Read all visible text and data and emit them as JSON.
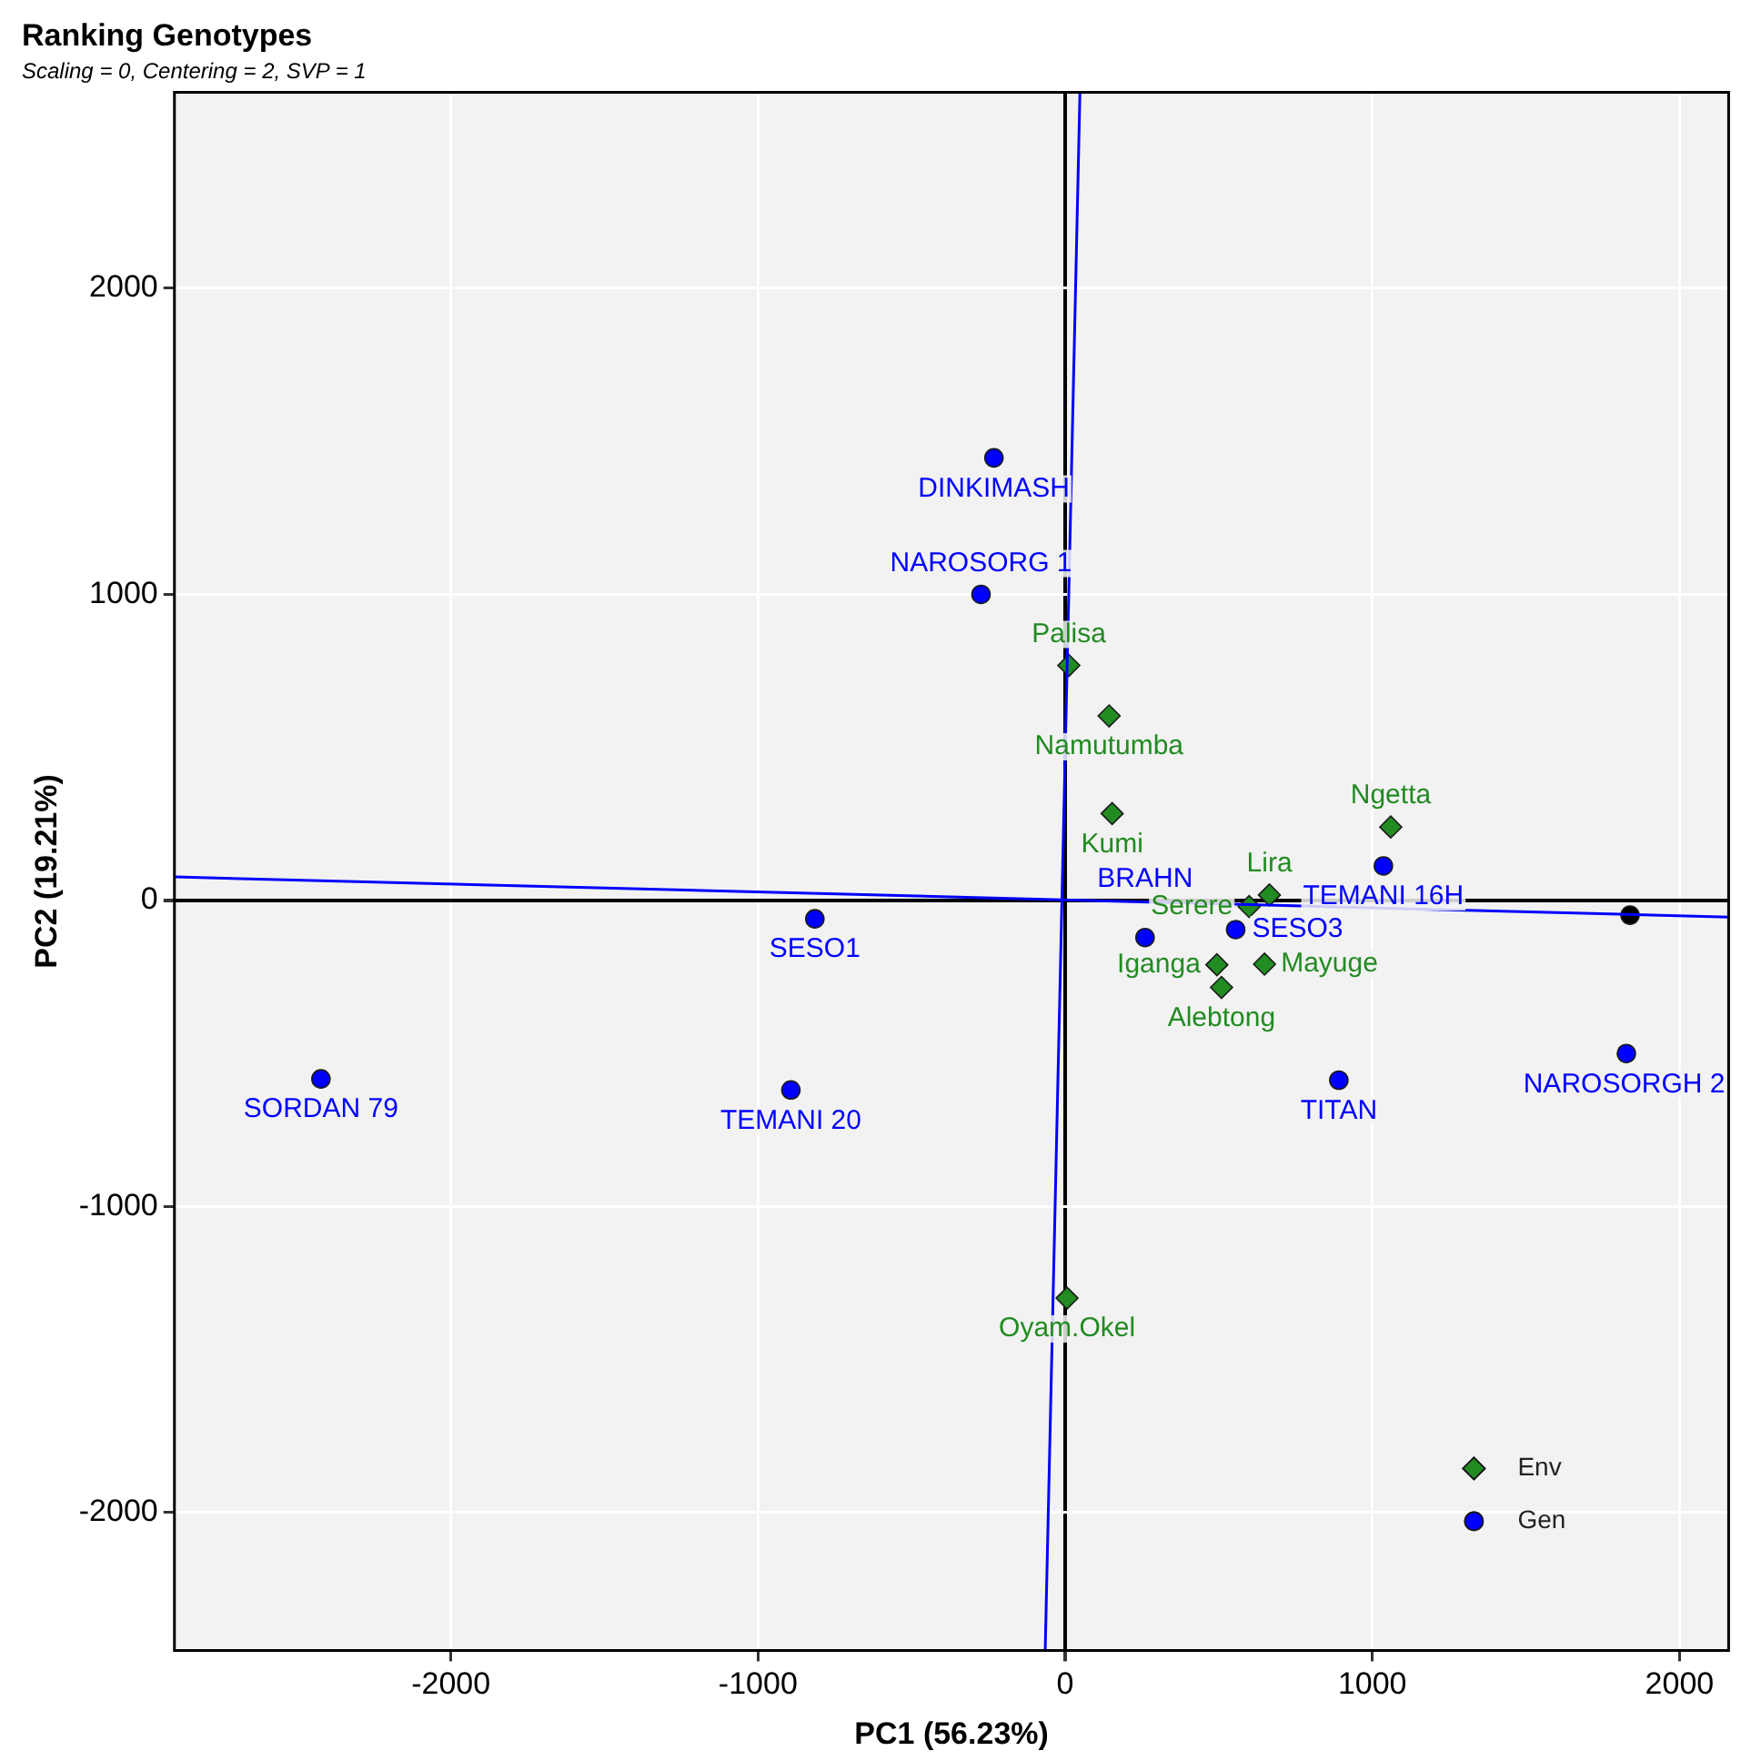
{
  "chart_data": {
    "type": "scatter",
    "title": "Ranking Genotypes",
    "subtitle": "Scaling = 0, Centering = 2, SVP = 1",
    "xlabel": "PC1 (56.23%)",
    "ylabel": "PC2 (19.21%)",
    "xlim": [
      -2900,
      2160
    ],
    "ylim": [
      -2450,
      2640
    ],
    "xticks": [
      -2000,
      -1000,
      0,
      1000,
      2000
    ],
    "yticks": [
      -2000,
      -1000,
      0,
      1000,
      2000
    ],
    "grid": true,
    "legend": "bottom right",
    "series": [
      {
        "type": "line",
        "color": "#0000ff",
        "x": [
          -2899,
          2160
        ],
        "values": [
          77,
          -54
        ],
        "marker": "none"
      },
      {
        "type": "line",
        "color": "#0000ff",
        "x": [
          48,
          -65
        ],
        "values": [
          2637,
          -2450
        ],
        "marker": "none"
      },
      {
        "name": "Env",
        "color": "#228b22",
        "marker": "diamond",
        "x": [
          12,
          143,
          153,
          1060,
          665,
          599,
          494,
          649,
          509,
          6
        ],
        "values": [
          768,
          603,
          284,
          240,
          18,
          -20,
          -210,
          -208,
          -284,
          -1299
        ]
      },
      {
        "name": "Gen",
        "color": "#0000ff",
        "marker": "circle",
        "x": [
          -232,
          -274,
          -815,
          -2423,
          -893,
          260,
          555,
          1036,
          891,
          1827
        ],
        "values": [
          1446,
          1000,
          -60,
          -583,
          -619,
          -121,
          -95,
          113,
          -587,
          -500
        ]
      },
      {
        "color": "#000000",
        "marker": "circle",
        "x": [
          1839
        ],
        "values": [
          -48
        ]
      }
    ],
    "annotations": [
      {
        "text": "Palisa",
        "x": 12,
        "y": 768
      },
      {
        "text": "Namutumba",
        "x": 143,
        "y": 603
      },
      {
        "text": "Kumi",
        "x": 153,
        "y": 284
      },
      {
        "text": "Ngetta",
        "x": 1060,
        "y": 240
      },
      {
        "text": "Lira",
        "x": 665,
        "y": 18
      },
      {
        "text": "Serere",
        "x": 599,
        "y": -20
      },
      {
        "text": "Iganga",
        "x": 494,
        "y": -210
      },
      {
        "text": "Mayuge",
        "x": 649,
        "y": -208
      },
      {
        "text": "Alebtong",
        "x": 509,
        "y": -284
      },
      {
        "text": "Oyam.Okel",
        "x": 6,
        "y": -1299
      },
      {
        "text": "DINKIMASH",
        "x": -232,
        "y": 1446
      },
      {
        "text": "NAROSORG 1",
        "x": -274,
        "y": 1000
      },
      {
        "text": "SESO1",
        "x": -815,
        "y": -60
      },
      {
        "text": "SORDAN 79",
        "x": -2423,
        "y": -583
      },
      {
        "text": "TEMANI 20",
        "x": -893,
        "y": -619
      },
      {
        "text": "BRAHN",
        "x": 260,
        "y": -121
      },
      {
        "text": "SESO3",
        "x": 555,
        "y": -95
      },
      {
        "text": "TEMANI 16H",
        "x": 1036,
        "y": 113
      },
      {
        "text": "TITAN",
        "x": 891,
        "y": -587
      },
      {
        "text": "NAROSORGH 2",
        "x": 1827,
        "y": -500
      }
    ]
  }
}
